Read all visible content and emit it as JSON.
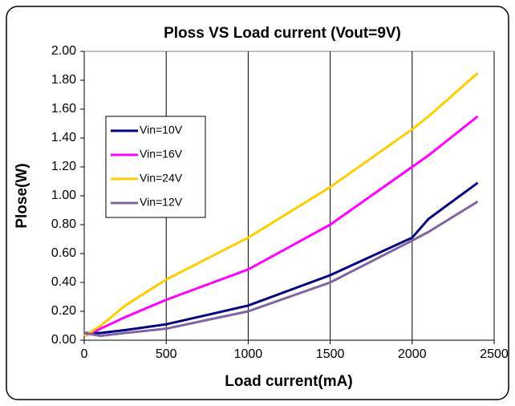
{
  "chart_data": {
    "type": "line",
    "title": "Ploss VS Load current (Vout=9V)",
    "x_label": "Load current(mA)",
    "y_label": "Plose(W)",
    "x": [
      0,
      100,
      250,
      500,
      1000,
      1500,
      2000,
      2100,
      2400
    ],
    "series": [
      {
        "name": "Vin=10V",
        "color": "#000080",
        "values": [
          0.05,
          0.05,
          0.07,
          0.11,
          0.24,
          0.45,
          0.71,
          0.84,
          1.09
        ]
      },
      {
        "name": "Vin=16V",
        "color": "#ff00ff",
        "values": [
          0.03,
          0.08,
          0.16,
          0.28,
          0.49,
          0.8,
          1.2,
          1.28,
          1.55
        ]
      },
      {
        "name": "Vin=24V",
        "color": "#ffcc00",
        "values": [
          0.03,
          0.1,
          0.24,
          0.42,
          0.71,
          1.06,
          1.46,
          1.55,
          1.85
        ]
      },
      {
        "name": "Vin=12V",
        "color": "#8064a2",
        "values": [
          0.05,
          0.03,
          0.05,
          0.08,
          0.2,
          0.4,
          0.69,
          0.75,
          0.96
        ]
      }
    ],
    "xlim": [
      0,
      2500
    ],
    "xticks": [
      0,
      500,
      1000,
      1500,
      2000,
      2500
    ],
    "ylim": [
      0,
      2
    ],
    "yticks": [
      {
        "value": 0,
        "label": "0.00"
      },
      {
        "value": 0.2,
        "label": "0.20"
      },
      {
        "value": 0.4,
        "label": "0.40"
      },
      {
        "value": 0.6,
        "label": "0.60"
      },
      {
        "value": 0.8,
        "label": "0.80"
      },
      {
        "value": 1,
        "label": "1.00"
      },
      {
        "value": 1.2,
        "label": "1.20"
      },
      {
        "value": 1.4,
        "label": "1.40"
      },
      {
        "value": 1.6,
        "label": "1.60"
      },
      {
        "value": 1.8,
        "label": "1.80"
      },
      {
        "value": 2,
        "label": "2.00"
      }
    ],
    "grid": "x",
    "legend": "upper left"
  }
}
